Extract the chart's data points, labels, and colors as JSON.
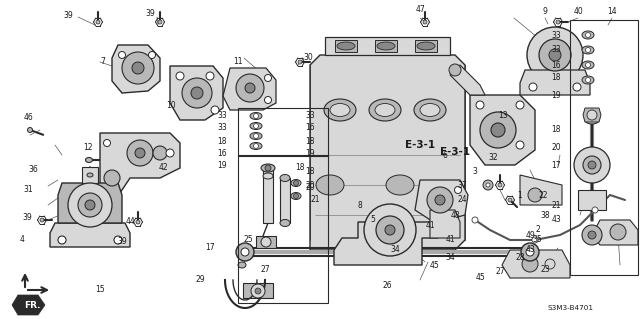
{
  "bg_color": "#ffffff",
  "diagram_label": "E-3-1",
  "part_number": "S3M3-B4701",
  "fig_width": 6.4,
  "fig_height": 3.19,
  "dpi": 100,
  "text_color": "#1a1a1a",
  "line_color": "#2a2a2a",
  "fill_light": "#d8d8d8",
  "fill_mid": "#b8b8b8",
  "fill_dark": "#888888"
}
